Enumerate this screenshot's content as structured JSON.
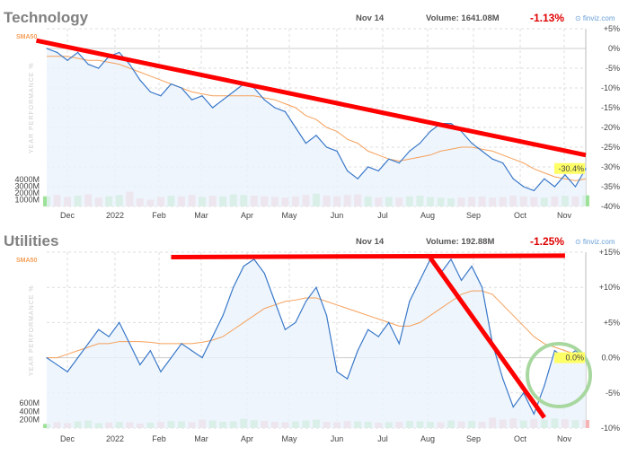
{
  "months": [
    "Dec",
    "2022",
    "Feb",
    "Mar",
    "Apr",
    "May",
    "Jun",
    "Jul",
    "Aug",
    "Sep",
    "Oct",
    "Nov"
  ],
  "y_axis_label": "YEAR PERFORMANCE %",
  "sma_label": "SMA50",
  "brand": "finviz.com",
  "colors": {
    "line": "#3a78c8",
    "fill": "#eaf3fc",
    "sma": "#f5a05a",
    "trend": "#ff0000",
    "circle": "#a8d8a0",
    "vol_up": "#9ee29a",
    "vol_down": "#f7b4b4",
    "highlight": "#ffff66"
  },
  "chart_data": [
    {
      "type": "line",
      "title": "Technology",
      "date": "Nov 14",
      "volume": "Volume: 1641.08M",
      "change": "-1.13%",
      "last_label": "-30.4%",
      "last": -30.4,
      "ylim": [
        -40,
        5
      ],
      "yticks": [
        5,
        0,
        -5,
        -10,
        -15,
        -20,
        -25,
        -30,
        -35,
        -40
      ],
      "ytick_labels": [
        "+5%",
        "0%",
        "-5%",
        "-10%",
        "-15%",
        "-20%",
        "-25%",
        "-30%",
        "-35%",
        "-40%"
      ],
      "vol_labels": [
        "4000M",
        "3000M",
        "2000M",
        "1000M"
      ],
      "vol_max": 6000,
      "values": [
        0,
        -1,
        -3,
        -1,
        -4,
        -5,
        -2,
        -1,
        -4,
        -8,
        -11,
        -12,
        -9,
        -10,
        -13,
        -12,
        -15,
        -13,
        -11,
        -9,
        -10,
        -13,
        -15,
        -16,
        -20,
        -24,
        -22,
        -25,
        -26,
        -31,
        -33,
        -30,
        -31,
        -28,
        -29,
        -26,
        -24,
        -21,
        -19,
        -19,
        -21,
        -24,
        -26,
        -28,
        -29,
        -33,
        -35,
        -36,
        -33,
        -35,
        -32,
        -35,
        -30.4
      ],
      "sma50": [
        -2,
        -2,
        -2,
        -2.5,
        -3,
        -3,
        -3.5,
        -4,
        -5,
        -6,
        -7,
        -8,
        -9,
        -10,
        -11,
        -11.5,
        -12,
        -12,
        -12,
        -12,
        -12,
        -12.5,
        -13,
        -14,
        -15,
        -17,
        -18,
        -20,
        -21,
        -23,
        -24,
        -26,
        -27,
        -28,
        -28.5,
        -28,
        -27.5,
        -27,
        -26,
        -25.5,
        -25,
        -25,
        -25.5,
        -26,
        -27,
        -28,
        -29,
        -30.5,
        -31.5,
        -32.5,
        -33,
        -33.5,
        -33
      ],
      "volume_values": [
        1500,
        1700,
        1400,
        1600,
        1800,
        1300,
        1500,
        1700,
        2200,
        1200,
        1000,
        1400,
        1600,
        1500,
        1700,
        1400,
        1600,
        1500,
        1800,
        1700,
        1600,
        1500,
        1400,
        1300,
        1500,
        1700,
        1900,
        1600,
        1500,
        1700,
        1800,
        1500,
        1300,
        1400,
        1300,
        1500,
        1600,
        1400,
        1300,
        1200,
        1300,
        1400,
        1500,
        1300,
        1400,
        1600,
        1500,
        1400,
        1300,
        1500,
        1600,
        1500,
        1641
      ],
      "trend_lines": [
        [
          [
            -1,
            2
          ],
          [
            52,
            -27
          ]
        ]
      ]
    },
    {
      "type": "line",
      "title": "Utilities",
      "date": "Nov 14",
      "volume": "Volume: 192.88M",
      "change": "-1.25%",
      "last_label": "0.0%",
      "last": 0,
      "ylim": [
        -10,
        15
      ],
      "yticks": [
        15,
        10,
        5,
        0,
        -5,
        -10
      ],
      "ytick_labels": [
        "+15%",
        "+10%",
        "+5%",
        "0.0%",
        "-5%",
        "-10%"
      ],
      "vol_labels": [
        "600M",
        "400M",
        "200M"
      ],
      "vol_max": 900,
      "values": [
        0,
        -1,
        -2,
        0,
        2,
        4,
        3,
        5,
        2,
        -1,
        1,
        -2,
        0,
        2,
        1,
        0,
        3,
        6,
        10,
        13,
        14,
        12,
        8,
        4,
        5,
        8,
        10,
        6,
        -2,
        -3,
        1,
        4,
        3,
        5,
        2,
        8,
        11,
        14,
        12,
        14,
        11,
        13,
        10,
        2,
        -3,
        -7,
        -5,
        -8,
        -4,
        1,
        0,
        1,
        0
      ],
      "sma50": [
        0,
        0,
        0.5,
        1,
        1.5,
        2,
        2,
        2.3,
        2.3,
        2.3,
        2.2,
        2,
        2,
        2,
        2,
        2.2,
        2.5,
        3,
        4,
        5,
        6,
        7,
        7.5,
        8,
        8.2,
        8.5,
        8.5,
        8,
        7.5,
        7,
        6.5,
        6,
        5.5,
        5,
        4.5,
        4.5,
        5,
        6,
        7,
        8,
        9,
        9.5,
        9.5,
        9,
        7.5,
        6,
        4.5,
        3,
        2,
        1.5,
        1,
        0.5,
        0.3
      ],
      "volume_values": [
        100,
        140,
        120,
        160,
        180,
        120,
        130,
        150,
        140,
        110,
        130,
        150,
        170,
        160,
        140,
        200,
        180,
        150,
        160,
        220,
        190,
        170,
        150,
        140,
        160,
        180,
        200,
        150,
        140,
        170,
        160,
        150,
        130,
        140,
        150,
        170,
        160,
        150,
        140,
        180,
        160,
        170,
        150,
        250,
        200,
        230,
        180,
        220,
        200,
        230,
        210,
        190,
        193
      ],
      "trend_lines": [
        [
          [
            12,
            14.3
          ],
          [
            50,
            14.5
          ]
        ],
        [
          [
            37,
            14.2
          ],
          [
            48,
            -8.5
          ]
        ]
      ]
    }
  ]
}
